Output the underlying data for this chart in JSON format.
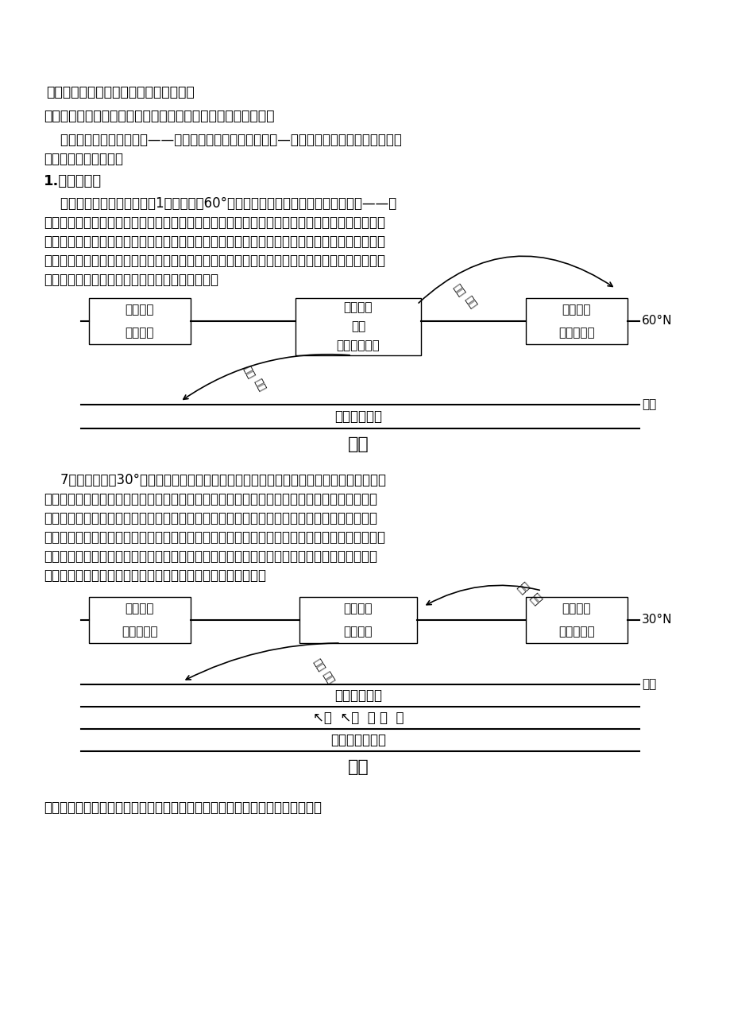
{
  "bg_color": "#ffffff",
  "title_section": "（二）气压带、风带季节移动与季风环流",
  "monsoon_def": "季风：大范围地区盛行风随季节有显著改变的现象，称为季风。",
  "para1_line1": "亚洲地区地处最大的大陆——欧亚大陆，且濨临最大的大洋—太平洋，海陆热力差异最明显，",
  "para1_line2": "故其季风环流最显著。",
  "section1": "1.季风的形成",
  "p2_l1": "    由于海陆热力性质的差异，1月份在北纬60°附近，由于亚欧大陆冷却快，形成蒙古——西",
  "p2_l2": "伯利亚高压（又称亚洲高压），副极地低气压带被亚洲高压切断，使副极地低气压带只能保留在海",
  "p2_l3": "洋上，形成北太平洋上的低气压中心（阿留申低压）和北大西洋上的低压中心（冰岛低压）。这时",
  "p2_l4": "受水平气压梯度力和地转偏向力等影响，大气由亚洲高压吹向阿留申低压和赤道低压，在东亚季风",
  "p2_l5": "区表现为西北季风在南亚季风区表现为东北季风，",
  "p3_l1": "    7月份，在北纬30°附近，由于亚欧大陆受热快，空气膊胀上升，近地面形成低气压，印度",
  "p3_l2": "低压（又称亚洲低压）最为突出，使分布在此处的副热带高气压带被印度低压切断，使副热带高",
  "p3_l3": "压只保留在海洋上，形成北太平洋上的高压中心（夏威夷高压）和北大西洋上的高压中心（亚速",
  "p3_l4": "尔高压），这时受水平气压梯度力及地转偏向力影响，大气由北太平洋的高压中心吹向亚洲大陆，",
  "p3_l5": "在东亚季风区表现为东南季风。对于南亚地区来说，由于太阳直射点的北移，位于赤道以南的东",
  "p3_l6": "南信风跨过赤道，在地转偏向力的作用下向右偏形成西南季风。",
  "summary": "小结：季风成因主要为海陆热力性质差异，此外还有气压带、风带的季节移动。"
}
